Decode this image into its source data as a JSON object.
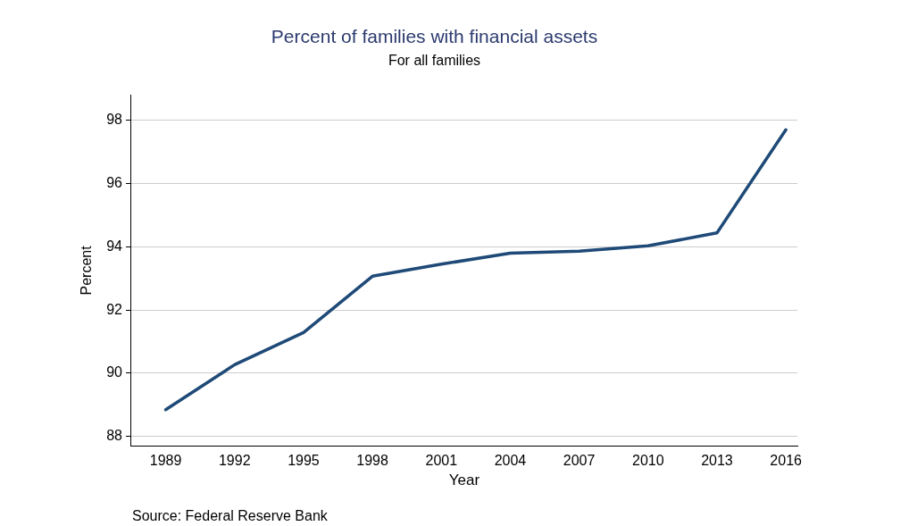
{
  "chart_data": {
    "type": "line",
    "title": "Percent of families with financial assets",
    "subtitle": "For all families",
    "xlabel": "Year",
    "ylabel": "Percent",
    "x": [
      1989,
      1992,
      1995,
      1998,
      2001,
      2004,
      2007,
      2010,
      2013,
      2016
    ],
    "series": [
      {
        "color": "#1f4a78",
        "values": [
          88.85,
          90.27,
          91.29,
          93.07,
          93.45,
          93.8,
          93.86,
          94.03,
          94.44,
          97.7
        ]
      }
    ],
    "xlim": [
      1987.5,
      2016.5
    ],
    "xticks": [
      1989,
      1992,
      1995,
      1998,
      2001,
      2004,
      2007,
      2010,
      2013,
      2016
    ],
    "ylim": [
      87.7,
      98.8
    ],
    "yticks": [
      88,
      90,
      92,
      94,
      96,
      98
    ],
    "grid": "y",
    "legend": false,
    "marker": "none",
    "line_style": "solid",
    "annotations": [
      "Source: Federal Reserve Bank"
    ]
  }
}
